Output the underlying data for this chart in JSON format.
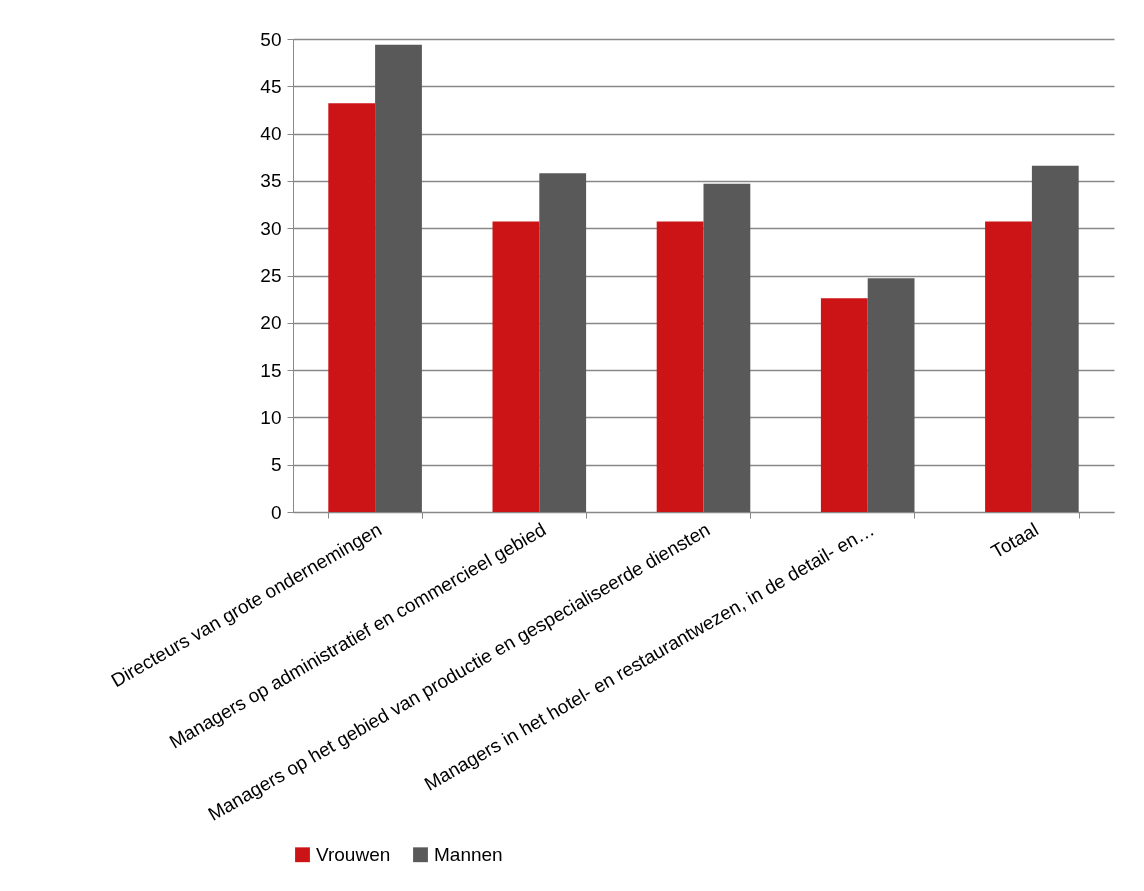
{
  "chart_data": {
    "type": "bar",
    "categories": [
      "Directeurs van grote ondernemingen",
      "Managers op administratief en commercieel gebied",
      "Managers op het gebied van productie en gespecialiseerde diensten",
      "Managers in het hotel- en restaurantwezen, in de detail- en…",
      "Totaal"
    ],
    "series": [
      {
        "name": "Vrouwen",
        "color": "#cc1417",
        "values": [
          43.2,
          30.7,
          30.7,
          22.6,
          30.7
        ]
      },
      {
        "name": "Mannen",
        "color": "#595959",
        "values": [
          49.4,
          35.8,
          34.7,
          24.7,
          36.6
        ]
      }
    ],
    "ylim": [
      0,
      50
    ],
    "yticks": [
      0,
      5,
      10,
      15,
      20,
      25,
      30,
      35,
      40,
      45,
      50
    ],
    "grid": "y",
    "legend": "bottom"
  }
}
